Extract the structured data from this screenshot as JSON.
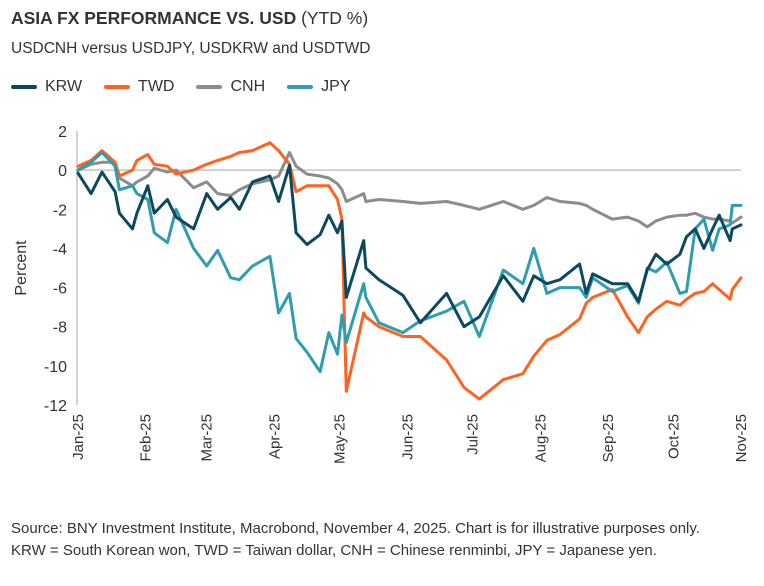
{
  "header": {
    "title_bold": "ASIA FX PERFORMANCE VS. USD",
    "title_light": "(YTD %)",
    "subtitle": "USDCNH versus USDJPY, USDKRW and USDTWD"
  },
  "footnote": "Source: BNY Investment Institute, Macrobond, November 4, 2025. Chart is for illustrative purposes only. KRW = South Korean won, TWD = Taiwan dollar, CNH = Chinese renminbi, JPY = Japanese yen.",
  "chart_data": {
    "type": "line",
    "title": "ASIA FX PERFORMANCE VS. USD (YTD %)",
    "subtitle": "USDCNH versus USDJPY, USDKRW and USDTWD",
    "ylabel": "Percent",
    "xlabel": "",
    "ylim": [
      -12,
      2
    ],
    "yticks": [
      "2",
      "0",
      "-2",
      "-4",
      "-6",
      "-8",
      "-10",
      "-12"
    ],
    "xlim": [
      "2025-01-01",
      "2025-11-01"
    ],
    "xtick_labels": [
      "Jan-25",
      "Feb-25",
      "Mar-25",
      "Apr-25",
      "May-25",
      "Jun-25",
      "Jul-25",
      "Aug-25",
      "Sep-25",
      "Oct-25",
      "Nov-25"
    ],
    "xtick_dates": [
      "2025-01-01",
      "2025-02-01",
      "2025-03-01",
      "2025-04-01",
      "2025-05-01",
      "2025-06-01",
      "2025-07-01",
      "2025-08-01",
      "2025-09-01",
      "2025-10-01",
      "2025-11-01"
    ],
    "grid": false,
    "legend_position": "top-left",
    "x": [
      "2025-01-01",
      "2025-01-07",
      "2025-01-12",
      "2025-01-18",
      "2025-01-20",
      "2025-01-26",
      "2025-01-28",
      "2025-02-02",
      "2025-02-05",
      "2025-02-11",
      "2025-02-15",
      "2025-02-23",
      "2025-03-01",
      "2025-03-06",
      "2025-03-12",
      "2025-03-16",
      "2025-03-22",
      "2025-03-30",
      "2025-04-03",
      "2025-04-08",
      "2025-04-11",
      "2025-04-16",
      "2025-04-22",
      "2025-04-26",
      "2025-04-30",
      "2025-05-02",
      "2025-05-04",
      "2025-05-12",
      "2025-05-13",
      "2025-05-19",
      "2025-05-30",
      "2025-06-07",
      "2025-06-19",
      "2025-06-27",
      "2025-07-04",
      "2025-07-15",
      "2025-07-24",
      "2025-07-29",
      "2025-08-04",
      "2025-08-10",
      "2025-08-19",
      "2025-08-22",
      "2025-08-25",
      "2025-09-03",
      "2025-09-10",
      "2025-09-15",
      "2025-09-19",
      "2025-09-23",
      "2025-09-28",
      "2025-10-04",
      "2025-10-07",
      "2025-10-11",
      "2025-10-15",
      "2025-10-19",
      "2025-10-22",
      "2025-10-27",
      "2025-10-28",
      "2025-11-01"
    ],
    "series": [
      {
        "name": "KRW",
        "color": "#0b4a5e",
        "values": [
          -0.15,
          -1.2,
          -0.1,
          -1.1,
          -2.2,
          -3.0,
          -2.2,
          -0.8,
          -2.2,
          -1.5,
          -2.4,
          -3.0,
          -1.2,
          -2.0,
          -1.4,
          -2.0,
          -0.6,
          -0.3,
          -1.6,
          0.25,
          -3.2,
          -3.8,
          -3.3,
          -2.3,
          -3.2,
          -2.6,
          -6.5,
          -3.6,
          -5.0,
          -5.6,
          -6.4,
          -7.8,
          -6.3,
          -8.0,
          -7.5,
          -5.4,
          -6.7,
          -5.4,
          -5.8,
          -5.6,
          -4.8,
          -6.3,
          -5.3,
          -5.8,
          -5.8,
          -6.7,
          -5.1,
          -4.3,
          -4.8,
          -4.3,
          -3.4,
          -3.0,
          -4.0,
          -3.0,
          -2.3,
          -3.6,
          -3.0,
          -2.8
        ]
      },
      {
        "name": "TWD",
        "color": "#ff6321",
        "values": [
          0.2,
          0.5,
          1.0,
          0.4,
          -0.3,
          0.0,
          0.5,
          0.8,
          0.3,
          0.2,
          -0.2,
          0.0,
          0.3,
          0.5,
          0.7,
          0.9,
          1.0,
          1.4,
          1.0,
          0.3,
          -1.1,
          -0.8,
          -0.8,
          -0.8,
          -1.5,
          -2.5,
          -11.3,
          -7.3,
          -7.5,
          -8.0,
          -8.5,
          -8.5,
          -9.7,
          -11.1,
          -11.7,
          -10.7,
          -10.4,
          -9.5,
          -8.7,
          -8.4,
          -7.6,
          -6.8,
          -6.5,
          -6.1,
          -7.5,
          -8.3,
          -7.5,
          -7.1,
          -6.7,
          -6.9,
          -6.6,
          -6.3,
          -6.2,
          -5.8,
          -6.1,
          -6.6,
          -6.1,
          -5.5
        ]
      },
      {
        "name": "CNH",
        "color": "#8c8c8c",
        "values": [
          0.0,
          0.3,
          0.4,
          0.4,
          -0.4,
          -0.8,
          -0.6,
          -0.3,
          0.1,
          -0.1,
          0.0,
          -0.9,
          -0.6,
          -1.2,
          -1.3,
          -1.0,
          -0.7,
          -0.5,
          -0.3,
          0.9,
          0.2,
          -0.2,
          -0.3,
          -0.4,
          -0.7,
          -1.0,
          -1.6,
          -1.2,
          -1.6,
          -1.5,
          -1.6,
          -1.7,
          -1.6,
          -1.8,
          -2.0,
          -1.6,
          -2.0,
          -1.8,
          -1.4,
          -1.6,
          -1.7,
          -1.8,
          -2.0,
          -2.5,
          -2.4,
          -2.6,
          -2.9,
          -2.6,
          -2.4,
          -2.3,
          -2.3,
          -2.2,
          -2.4,
          -2.5,
          -2.5,
          -2.6,
          -2.7,
          -2.4
        ]
      },
      {
        "name": "JPY",
        "color": "#2e9db0",
        "values": [
          0.0,
          0.4,
          0.9,
          0.2,
          -1.0,
          -0.8,
          -1.2,
          -1.5,
          -3.2,
          -3.7,
          -2.0,
          -4.0,
          -4.9,
          -4.1,
          -5.5,
          -5.6,
          -4.9,
          -4.4,
          -7.3,
          -6.3,
          -8.6,
          -9.3,
          -10.3,
          -8.3,
          -9.4,
          -7.4,
          -8.8,
          -5.8,
          -6.5,
          -7.8,
          -8.3,
          -7.7,
          -7.2,
          -6.7,
          -8.5,
          -5.1,
          -5.8,
          -4.0,
          -6.3,
          -6.0,
          -6.0,
          -6.5,
          -5.5,
          -6.2,
          -5.9,
          -6.8,
          -5.0,
          -5.2,
          -4.7,
          -6.3,
          -6.2,
          -3.0,
          -2.5,
          -4.1,
          -3.0,
          -2.8,
          -1.8,
          -1.8
        ]
      }
    ]
  }
}
